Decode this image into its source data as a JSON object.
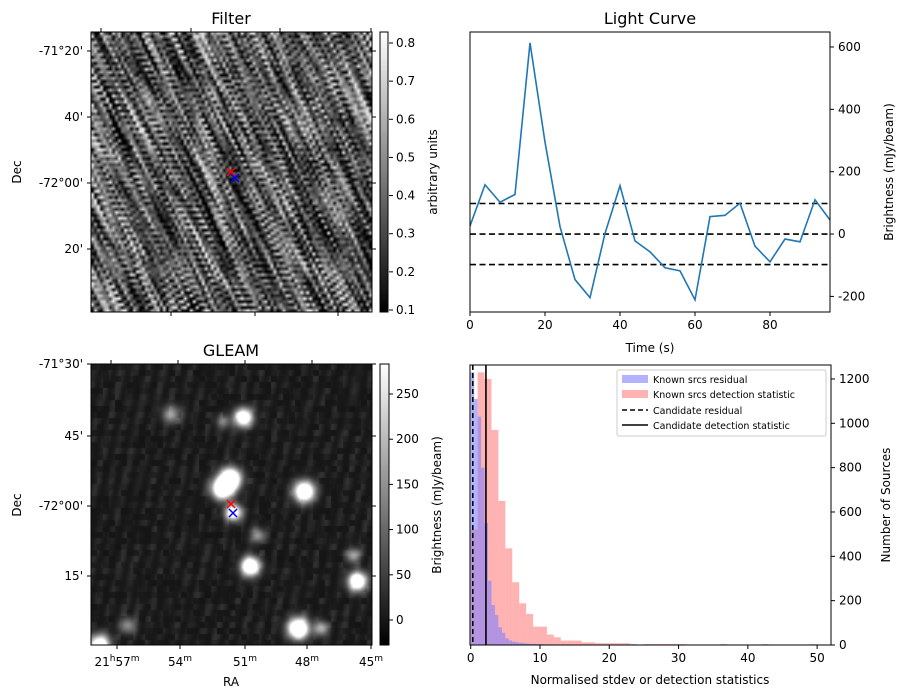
{
  "panels": {
    "filter": {
      "title": "Filter",
      "ylabel": "Dec",
      "dec_ticks": [
        "-71°20'",
        "40'",
        "-72°00'",
        "20'"
      ],
      "colorbar": {
        "label": "arbitrary units",
        "ticks": [
          "0.8",
          "0.7",
          "0.6",
          "0.5",
          "0.4",
          "0.3",
          "0.2",
          "0.1"
        ],
        "range": [
          0.09,
          0.83
        ]
      }
    },
    "gleam": {
      "title": "GLEAM",
      "ylabel": "Dec",
      "xlabel": "RA",
      "dec_ticks": [
        "-71°30'",
        "45'",
        "-72°00'",
        "15'"
      ],
      "ra_ticks": [
        {
          "h": "21",
          "hs": "h",
          "m": "57",
          "ms": "m"
        },
        {
          "h": "",
          "hs": "",
          "m": "54",
          "ms": "m"
        },
        {
          "h": "",
          "hs": "",
          "m": "51",
          "ms": "m"
        },
        {
          "h": "",
          "hs": "",
          "m": "48",
          "ms": "m"
        },
        {
          "h": "",
          "hs": "",
          "m": "45",
          "ms": "m"
        }
      ],
      "colorbar": {
        "label": "Brightness (mJy/beam)",
        "ticks": [
          "250",
          "200",
          "150",
          "100",
          "50",
          "0"
        ],
        "range": [
          -25,
          280
        ]
      }
    },
    "markers": {
      "catalog_color": "#ff0000",
      "candidate_color": "#0000ff"
    }
  },
  "chart_data": [
    {
      "type": "line",
      "title": "Light Curve",
      "xlabel": "Time (s)",
      "ylabel": "Brightness (mJy/beam)",
      "xlim": [
        0,
        96
      ],
      "ylim": [
        -250,
        648
      ],
      "xticks": [
        "0",
        "20",
        "40",
        "60",
        "80"
      ],
      "yticks": [
        "-200",
        "0",
        "200",
        "400",
        "600"
      ],
      "x": [
        0,
        4,
        8,
        12,
        16,
        20,
        24,
        28,
        32,
        36,
        40,
        44,
        48,
        52,
        56,
        60,
        64,
        68,
        72,
        76,
        80,
        84,
        88,
        92,
        96
      ],
      "y": [
        26,
        158,
        102,
        127,
        613,
        295,
        24,
        -146,
        -204,
        2,
        155,
        -22,
        -57,
        -108,
        -118,
        -211,
        56,
        60,
        99,
        -39,
        -89,
        -16,
        -25,
        110,
        45
      ],
      "hlines": [
        98,
        0,
        -98
      ],
      "line_color": "#1f77b4"
    },
    {
      "type": "bar",
      "subtype": "histogram",
      "xlabel": "Normalised stdev or detection statistics",
      "ylabel": "Number of Sources",
      "xlim": [
        0,
        52
      ],
      "ylim": [
        0,
        1263
      ],
      "xticks": [
        "0",
        "10",
        "20",
        "30",
        "40",
        "50"
      ],
      "yticks": [
        "0",
        "200",
        "400",
        "600",
        "800",
        "1000",
        "1200"
      ],
      "series": [
        {
          "name": "Known srcs detection statistic",
          "color": "#ff7f7f",
          "bin_start": 0,
          "bin_width": 1.0,
          "values": [
            520,
            1230,
            1200,
            970,
            650,
            436,
            283,
            188,
            140,
            83,
            83,
            47,
            35,
            20,
            20,
            20,
            12,
            12,
            8,
            8,
            8,
            8,
            8,
            4,
            0,
            4,
            4,
            4,
            4,
            4,
            4,
            0,
            0,
            0,
            0,
            0,
            4,
            0,
            0,
            0,
            0,
            0,
            4,
            0,
            0,
            0,
            0,
            0,
            0,
            4
          ]
        },
        {
          "name": "Known srcs residual",
          "color": "#7f7fff",
          "bin_start": 0,
          "bin_width": 0.5,
          "values": [
            1230,
            1110,
            1030,
            800,
            550,
            290,
            180,
            135,
            80,
            55,
            30,
            20,
            15,
            12,
            10,
            8,
            6,
            5,
            5,
            4,
            4,
            3,
            3,
            3,
            2,
            2,
            2,
            2,
            2,
            2,
            2,
            2,
            1,
            1,
            1,
            1,
            1,
            1,
            1,
            1,
            1,
            1,
            1,
            1,
            1,
            1,
            1,
            1,
            1,
            1,
            1,
            1,
            1,
            1,
            1,
            1,
            1,
            1,
            1,
            1,
            1,
            1,
            1,
            1,
            1,
            1,
            1,
            1,
            1,
            1,
            1,
            1,
            1,
            1,
            1,
            1,
            1,
            1,
            1,
            1,
            1
          ]
        }
      ],
      "vlines": [
        {
          "name": "Candidate residual",
          "x": 0.3,
          "style": "dashed"
        },
        {
          "name": "Candidate detection statistic",
          "x": 2.2,
          "style": "solid"
        }
      ],
      "legend": {
        "placement": "top-right",
        "entries": [
          "Known srcs residual",
          "Known srcs detection statistic",
          "Candidate residual",
          "Candidate detection statistic"
        ]
      }
    }
  ]
}
